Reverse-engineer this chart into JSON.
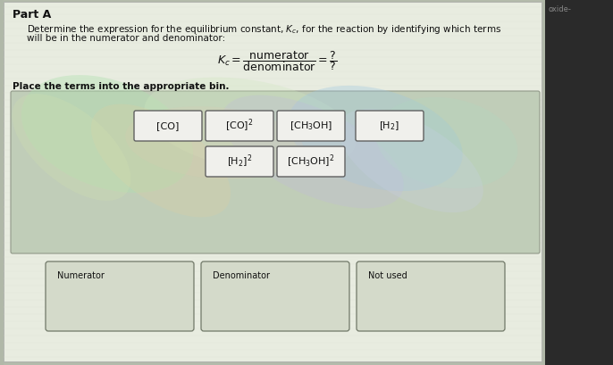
{
  "title": "Part A",
  "watermark": "oxide-",
  "instruction_line1": "Determine the expression for the equilibrium constant, $K_c$, for the reaction by identifying which terms",
  "instruction_line2": "will be in the numerator and denominator:",
  "subheading": "Place the terms into the appropriate bin.",
  "terms_row1": [
    "[CO]",
    "[CO]$^2$",
    "[CH$_3$OH]",
    "[H$_2$]"
  ],
  "terms_row2": [
    "[H$_2$]$^2$",
    "[CH$_3$OH]$^2$"
  ],
  "bins": [
    "Numerator",
    "Denominator",
    "Not used"
  ],
  "outer_bg": "#b0b8a8",
  "panel_bg": "#d8ddd0",
  "swirl_panel_bg": "#c8d4c0",
  "right_strip_color": "#2a2a2a",
  "tile_bg": "#f0f0ec",
  "tile_border": "#606060",
  "bin_bg": "#d8ddd0",
  "bin_border": "#707868",
  "text_color": "#111111",
  "title_fontsize": 9,
  "body_fontsize": 7.5,
  "formula_fontsize": 9,
  "term_fontsize": 8,
  "bin_fontsize": 7
}
